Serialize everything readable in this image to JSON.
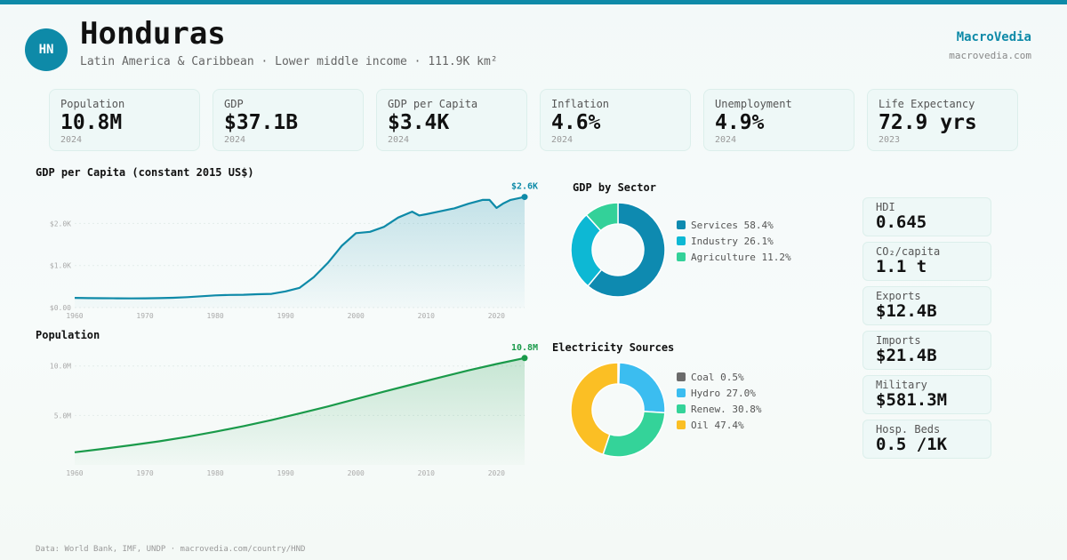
{
  "header": {
    "avatar_text": "HN",
    "title": "Honduras",
    "subtitle": "Latin America & Caribbean · Lower middle income · 111.9K km²",
    "brand": "MacroVedia",
    "brand_url": "macrovedia.com"
  },
  "kpis": [
    {
      "label": "Population",
      "value": "10.8M",
      "year": "2024"
    },
    {
      "label": "GDP",
      "value": "$37.1B",
      "year": "2024"
    },
    {
      "label": "GDP per Capita",
      "value": "$3.4K",
      "year": "2024"
    },
    {
      "label": "Inflation",
      "value": "4.6%",
      "year": "2024"
    },
    {
      "label": "Unemployment",
      "value": "4.9%",
      "year": "2024"
    },
    {
      "label": "Life Expectancy",
      "value": "72.9 yrs",
      "year": "2023"
    }
  ],
  "stats": [
    {
      "label": "HDI",
      "value": "0.645"
    },
    {
      "label": "CO₂/capita",
      "value": "1.1 t"
    },
    {
      "label": "Exports",
      "value": "$12.4B"
    },
    {
      "label": "Imports",
      "value": "$21.4B"
    },
    {
      "label": "Military",
      "value": "$581.3M"
    },
    {
      "label": "Hosp. Beds",
      "value": "0.5 /1K"
    }
  ],
  "footer": "Data: World Bank, IMF, UNDP · macrovedia.com/country/HND",
  "colors": {
    "accent": "#0e8aa8",
    "population_line": "#1a9a4a"
  },
  "chart_data": [
    {
      "id": "gdp_per_capita",
      "type": "area",
      "title": "GDP per Capita (constant 2015 US$)",
      "end_label": "$2.6K",
      "color": "#0e8aa8",
      "ylim": [
        0,
        2600
      ],
      "yticks": [
        {
          "v": 0,
          "label": "$0.00"
        },
        {
          "v": 1000,
          "label": "$1.0K"
        },
        {
          "v": 2000,
          "label": "$2.0K"
        }
      ],
      "xlim": [
        1960,
        2024
      ],
      "xticks": [
        1960,
        1970,
        1980,
        1990,
        2000,
        2010,
        2020
      ],
      "x": [
        1960,
        1962,
        1964,
        1966,
        1968,
        1970,
        1972,
        1974,
        1976,
        1978,
        1980,
        1982,
        1984,
        1986,
        1988,
        1990,
        1992,
        1994,
        1996,
        1998,
        2000,
        2002,
        2004,
        2006,
        2008,
        2009,
        2010,
        2012,
        2014,
        2016,
        2018,
        2019,
        2020,
        2021,
        2022,
        2024
      ],
      "y": [
        230,
        225,
        222,
        220,
        218,
        220,
        225,
        232,
        248,
        268,
        290,
        300,
        305,
        318,
        325,
        385,
        470,
        720,
        1060,
        1470,
        1770,
        1800,
        1920,
        2140,
        2280,
        2190,
        2220,
        2290,
        2360,
        2470,
        2560,
        2560,
        2370,
        2480,
        2560,
        2630
      ]
    },
    {
      "id": "population",
      "type": "area",
      "title": "Population",
      "end_label": "10.8M",
      "color": "#1a9a4a",
      "ylim": [
        0,
        11.5
      ],
      "yticks": [
        {
          "v": 5,
          "label": "5.0M"
        },
        {
          "v": 10,
          "label": "10.0M"
        }
      ],
      "xlim": [
        1960,
        2024
      ],
      "xticks": [
        1960,
        1970,
        1980,
        1990,
        2000,
        2010,
        2020
      ],
      "x": [
        1960,
        1964,
        1968,
        1972,
        1976,
        1980,
        1984,
        1988,
        1992,
        1996,
        2000,
        2004,
        2008,
        2012,
        2016,
        2020,
        2024
      ],
      "y": [
        1.28,
        1.62,
        1.99,
        2.38,
        2.84,
        3.35,
        3.92,
        4.53,
        5.2,
        5.9,
        6.66,
        7.4,
        8.13,
        8.84,
        9.55,
        10.2,
        10.8
      ]
    },
    {
      "id": "gdp_by_sector",
      "type": "pie",
      "title": "GDP by Sector",
      "slices": [
        {
          "name": "Services",
          "value": 58.4,
          "label": "Services 58.4%",
          "color": "#0e8ab0"
        },
        {
          "name": "Industry",
          "value": 26.1,
          "label": "Industry 26.1%",
          "color": "#0db8d4"
        },
        {
          "name": "Agriculture",
          "value": 11.2,
          "label": "Agriculture 11.2%",
          "color": "#33d199"
        }
      ]
    },
    {
      "id": "electricity_sources",
      "type": "pie",
      "title": "Electricity Sources",
      "slices": [
        {
          "name": "Coal",
          "value": 0.5,
          "label": "Coal 0.5%",
          "color": "#6b6b6b"
        },
        {
          "name": "Hydro",
          "value": 27.0,
          "label": "Hydro 27.0%",
          "color": "#3bbdf0"
        },
        {
          "name": "Renew.",
          "value": 30.8,
          "label": "Renew. 30.8%",
          "color": "#34d399"
        },
        {
          "name": "Oil",
          "value": 47.4,
          "label": "Oil 47.4%",
          "color": "#fbbf24"
        }
      ]
    }
  ]
}
